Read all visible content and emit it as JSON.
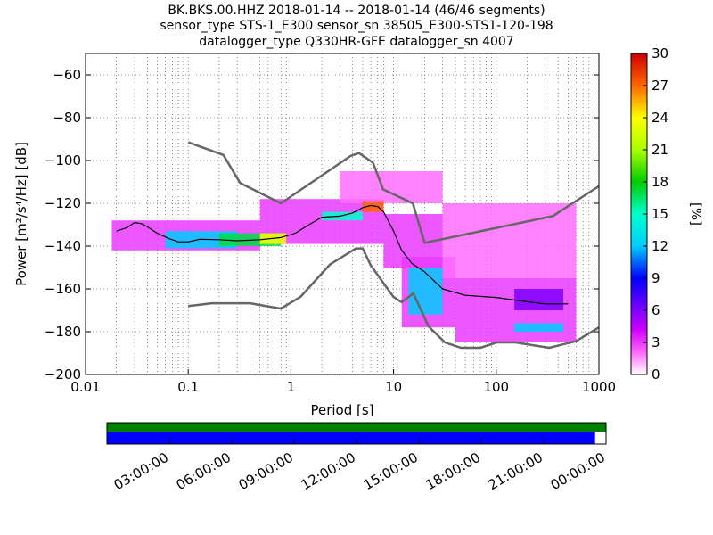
{
  "chart_data": {
    "type": "heatmap",
    "title_lines": [
      "BK.BKS.00.HHZ   2018-01-14 -- 2018-01-14  (46/46 segments)",
      "sensor_type STS-1_E300 sensor_sn 38505_E300-STS1-120-198",
      "datalogger_type Q330HR-GFE datalogger_sn 4007"
    ],
    "xlabel": "Period [s]",
    "ylabel": "Power [m²/s⁴/Hz] [dB]",
    "x_scale": "log",
    "xlim": [
      0.01,
      1000
    ],
    "ylim": [
      -200,
      -50
    ],
    "x_ticks": [
      {
        "value": 0.01,
        "label": "0.01"
      },
      {
        "value": 0.1,
        "label": "0.1"
      },
      {
        "value": 1,
        "label": "1"
      },
      {
        "value": 10,
        "label": "10"
      },
      {
        "value": 100,
        "label": "100"
      },
      {
        "value": 1000,
        "label": "1000"
      }
    ],
    "y_ticks": [
      {
        "value": -60,
        "label": "−60"
      },
      {
        "value": -80,
        "label": "−80"
      },
      {
        "value": -100,
        "label": "−100"
      },
      {
        "value": -120,
        "label": "−120"
      },
      {
        "value": -140,
        "label": "−140"
      },
      {
        "value": -160,
        "label": "−160"
      },
      {
        "value": -180,
        "label": "−180"
      },
      {
        "value": -200,
        "label": "−200"
      }
    ],
    "grid": true,
    "colorbar": {
      "label": "[%]",
      "range": [
        0,
        30
      ],
      "ticks": [
        {
          "value": 0,
          "label": "0"
        },
        {
          "value": 3,
          "label": "3"
        },
        {
          "value": 6,
          "label": "6"
        },
        {
          "value": 9,
          "label": "9"
        },
        {
          "value": 12,
          "label": "12"
        },
        {
          "value": 15,
          "label": "15"
        },
        {
          "value": 18,
          "label": "18"
        },
        {
          "value": 21,
          "label": "21"
        },
        {
          "value": 24,
          "label": "24"
        },
        {
          "value": 27,
          "label": "27"
        },
        {
          "value": 30,
          "label": "30"
        }
      ]
    },
    "nhnm": [
      [
        0.1,
        -168
      ],
      [
        0.17,
        -166.7
      ],
      [
        0.4,
        -166.7
      ],
      [
        0.8,
        -169.2
      ],
      [
        1.24,
        -163.7
      ],
      [
        2.4,
        -148.6
      ],
      [
        4.3,
        -141.1
      ],
      [
        5.0,
        -141.1
      ],
      [
        6.0,
        -149
      ],
      [
        10,
        -163.8
      ],
      [
        12,
        -166.2
      ],
      [
        15.6,
        -162.1
      ],
      [
        21.9,
        -177.5
      ],
      [
        31.6,
        -185
      ],
      [
        45,
        -187.5
      ],
      [
        70,
        -187.5
      ],
      [
        101,
        -185
      ],
      [
        154,
        -185
      ],
      [
        328,
        -187.5
      ],
      [
        600,
        -184.4
      ],
      [
        1000,
        -178
      ]
    ],
    "nlnm": [
      [
        0.1,
        -91.5
      ],
      [
        0.22,
        -97.4
      ],
      [
        0.32,
        -110.5
      ],
      [
        0.8,
        -120
      ],
      [
        3.8,
        -97.9
      ],
      [
        4.6,
        -96.5
      ],
      [
        6.3,
        -101
      ],
      [
        7.9,
        -113.5
      ],
      [
        15.4,
        -120
      ],
      [
        20,
        -138.5
      ],
      [
        354.8,
        -126
      ],
      [
        1000,
        -112
      ]
    ],
    "mean": [
      [
        0.02,
        -133
      ],
      [
        0.025,
        -131.5
      ],
      [
        0.03,
        -129
      ],
      [
        0.035,
        -129.5
      ],
      [
        0.04,
        -131
      ],
      [
        0.05,
        -134
      ],
      [
        0.065,
        -136.5
      ],
      [
        0.08,
        -138
      ],
      [
        0.1,
        -138
      ],
      [
        0.13,
        -136.8
      ],
      [
        0.2,
        -137
      ],
      [
        0.3,
        -137.5
      ],
      [
        0.5,
        -137
      ],
      [
        0.8,
        -136
      ],
      [
        1.1,
        -134
      ],
      [
        1.5,
        -130
      ],
      [
        2,
        -126.5
      ],
      [
        3,
        -126
      ],
      [
        4,
        -124.5
      ],
      [
        5,
        -122
      ],
      [
        6,
        -121
      ],
      [
        7,
        -121.5
      ],
      [
        8,
        -124
      ],
      [
        10,
        -133
      ],
      [
        12,
        -142
      ],
      [
        15,
        -148
      ],
      [
        20,
        -152
      ],
      [
        30,
        -160
      ],
      [
        50,
        -163
      ],
      [
        100,
        -164
      ],
      [
        200,
        -166
      ],
      [
        300,
        -167
      ],
      [
        500,
        -167
      ]
    ],
    "blocks": [
      {
        "x0": 0.018,
        "x1": 0.5,
        "y0": -142,
        "y1": -128,
        "pct": 3
      },
      {
        "x0": 0.5,
        "x1": 8,
        "y0": -139,
        "y1": -118,
        "pct": 3
      },
      {
        "x0": 8,
        "x1": 30,
        "y0": -150,
        "y1": -125,
        "pct": 3
      },
      {
        "x0": 12,
        "x1": 40,
        "y0": -178,
        "y1": -145,
        "pct": 3
      },
      {
        "x0": 40,
        "x1": 600,
        "y0": -185,
        "y1": -155,
        "pct": 3
      },
      {
        "x0": 3,
        "x1": 30,
        "y0": -120,
        "y1": -105,
        "pct": 2
      },
      {
        "x0": 30,
        "x1": 600,
        "y0": -155,
        "y1": -120,
        "pct": 2
      },
      {
        "x0": 0.06,
        "x1": 0.3,
        "y0": -141,
        "y1": -133,
        "pct": 12
      },
      {
        "x0": 0.2,
        "x1": 0.8,
        "y0": -140,
        "y1": -134,
        "pct": 17
      },
      {
        "x0": 0.5,
        "x1": 0.9,
        "y0": -139,
        "y1": -134,
        "pct": 24
      },
      {
        "x0": 2,
        "x1": 5,
        "y0": -128,
        "y1": -124,
        "pct": 15
      },
      {
        "x0": 5,
        "x1": 8,
        "y0": -124,
        "y1": -119,
        "pct": 27
      },
      {
        "x0": 14,
        "x1": 30,
        "y0": -172,
        "y1": -150,
        "pct": 12
      },
      {
        "x0": 150,
        "x1": 450,
        "y0": -180,
        "y1": -176,
        "pct": 12
      },
      {
        "x0": 150,
        "x1": 450,
        "y0": -170,
        "y1": -160,
        "pct": 6
      }
    ]
  },
  "timeline": {
    "ticks": [
      {
        "label": "03:00:00",
        "frac": 0.125
      },
      {
        "label": "06:00:00",
        "frac": 0.25
      },
      {
        "label": "09:00:00",
        "frac": 0.375
      },
      {
        "label": "12:00:00",
        "frac": 0.5
      },
      {
        "label": "15:00:00",
        "frac": 0.625
      },
      {
        "label": "18:00:00",
        "frac": 0.75
      },
      {
        "label": "21:00:00",
        "frac": 0.875
      },
      {
        "label": "00:00:00",
        "frac": 1.0
      }
    ],
    "data_coverage": [
      0,
      1
    ],
    "psd_coverage": [
      0,
      0.978
    ],
    "data_color": "#008000",
    "psd_color": "#0000ff"
  },
  "colors": {
    "model_line": "#666666",
    "mean_line": "#000000"
  }
}
